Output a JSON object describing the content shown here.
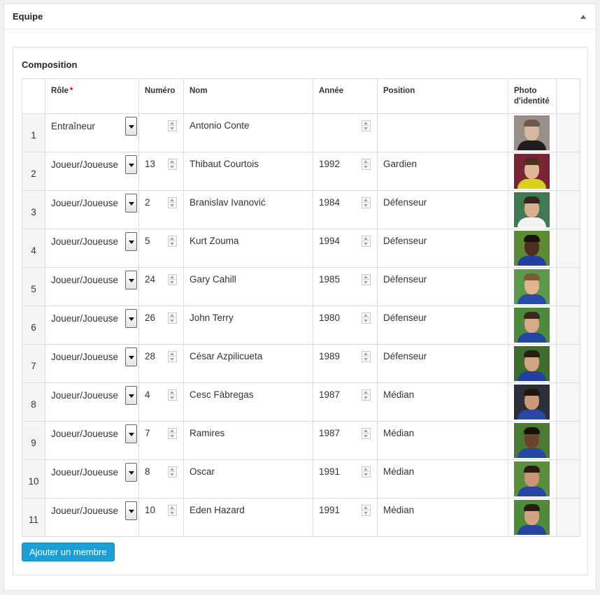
{
  "panel": {
    "title": "Equipe"
  },
  "composition": {
    "title": "Composition",
    "add_button": "Ajouter un membre",
    "columns": {
      "role": "Rôle",
      "role_required": "*",
      "numero": "Numéro",
      "nom": "Nom",
      "annee": "Année",
      "position": "Position",
      "photo_line1": "Photo",
      "photo_line2": "d'identité"
    },
    "rows": [
      {
        "index": "1",
        "role": "Entraîneur",
        "numero": "",
        "nom": "Antonio Conte",
        "annee": "",
        "position": "",
        "photo": {
          "bg": "#9a8f88",
          "face": "#d7b79d",
          "hair": "#6b5a4c",
          "body": "#1f1f22"
        }
      },
      {
        "index": "2",
        "role": "Joueur/Joueuse",
        "numero": "13",
        "nom": "Thibaut Courtois",
        "annee": "1992",
        "position": "Gardien",
        "photo": {
          "bg": "#7b2436",
          "face": "#e0b59a",
          "hair": "#4a3020",
          "body": "#d8d21d"
        }
      },
      {
        "index": "3",
        "role": "Joueur/Joueuse",
        "numero": "2",
        "nom": "Branislav Ivanović",
        "annee": "1984",
        "position": "Défenseur",
        "photo": {
          "bg": "#3f7a52",
          "face": "#d9b08f",
          "hair": "#3a2619",
          "body": "#f2f2f2"
        }
      },
      {
        "index": "4",
        "role": "Joueur/Joueuse",
        "numero": "5",
        "nom": "Kurt Zouma",
        "annee": "1994",
        "position": "Défenseur",
        "photo": {
          "bg": "#5f8a35",
          "face": "#4b3022",
          "hair": "#1d130e",
          "body": "#243f9e"
        }
      },
      {
        "index": "5",
        "role": "Joueur/Joueuse",
        "numero": "24",
        "nom": "Gary Cahill",
        "annee": "1985",
        "position": "Défenseur",
        "photo": {
          "bg": "#5a9a4a",
          "face": "#e1b496",
          "hair": "#7a5a3a",
          "body": "#2a4ba8"
        }
      },
      {
        "index": "6",
        "role": "Joueur/Joueuse",
        "numero": "26",
        "nom": "John Terry",
        "annee": "1980",
        "position": "Défenseur",
        "photo": {
          "bg": "#4e8a3c",
          "face": "#d9a98a",
          "hair": "#3a2a1e",
          "body": "#2346a3"
        }
      },
      {
        "index": "7",
        "role": "Joueur/Joueuse",
        "numero": "28",
        "nom": "César Azpilicueta",
        "annee": "1989",
        "position": "Défenseur",
        "photo": {
          "bg": "#3d6e2e",
          "face": "#d4a585",
          "hair": "#2a1d14",
          "body": "#233fa0"
        }
      },
      {
        "index": "8",
        "role": "Joueur/Joueuse",
        "numero": "4",
        "nom": "Cesc Fàbregas",
        "annee": "1987",
        "position": "Médian",
        "photo": {
          "bg": "#2b2f3a",
          "face": "#c99a7a",
          "hair": "#1e1510",
          "body": "#2848a4"
        }
      },
      {
        "index": "9",
        "role": "Joueur/Joueuse",
        "numero": "7",
        "nom": "Ramires",
        "annee": "1987",
        "position": "Médian",
        "photo": {
          "bg": "#4a7b34",
          "face": "#6a4430",
          "hair": "#1c120c",
          "body": "#2747a3"
        }
      },
      {
        "index": "10",
        "role": "Joueur/Joueuse",
        "numero": "8",
        "nom": "Oscar",
        "annee": "1991",
        "position": "Médian",
        "photo": {
          "bg": "#5b8e3c",
          "face": "#c99777",
          "hair": "#2a1c13",
          "body": "#2646a2"
        }
      },
      {
        "index": "11",
        "role": "Joueur/Joueuse",
        "numero": "10",
        "nom": "Eden Hazard",
        "annee": "1991",
        "position": "Médian",
        "photo": {
          "bg": "#4f8a3a",
          "face": "#d2a384",
          "hair": "#2c1d13",
          "body": "#2545a1"
        }
      }
    ]
  }
}
